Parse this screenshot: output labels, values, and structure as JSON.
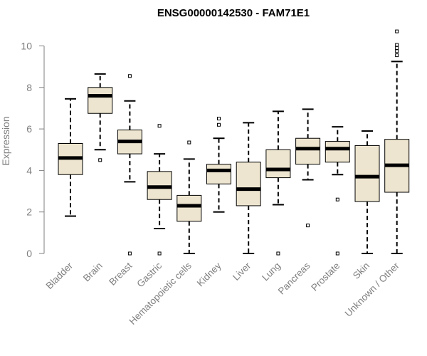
{
  "chart_data": {
    "type": "boxplot",
    "title": "ENSG00000142530 - FAM71E1",
    "xlabel": "",
    "ylabel": "Expression",
    "ylim": [
      0,
      10.5
    ],
    "yticks": [
      0,
      2,
      4,
      6,
      8,
      10
    ],
    "box_fill": "#ede5cf",
    "categories": [
      "Bladder",
      "Brain",
      "Breast",
      "Gastric",
      "Hematopoietic cells",
      "Kidney",
      "Liver",
      "Lung",
      "Pancreas",
      "Prostate",
      "Skin",
      "Unknown / Other"
    ],
    "boxes": [
      {
        "whisker_low": 1.8,
        "q1": 3.8,
        "median": 4.6,
        "q3": 5.3,
        "whisker_high": 7.45,
        "outliers": []
      },
      {
        "whisker_low": 5.0,
        "q1": 6.75,
        "median": 7.6,
        "q3": 8.0,
        "whisker_high": 8.65,
        "outliers": [
          4.5
        ]
      },
      {
        "whisker_low": 3.45,
        "q1": 4.8,
        "median": 5.4,
        "q3": 5.95,
        "whisker_high": 7.35,
        "outliers": [
          8.55,
          0.0
        ]
      },
      {
        "whisker_low": 1.2,
        "q1": 2.6,
        "median": 3.2,
        "q3": 3.95,
        "whisker_high": 4.8,
        "outliers": [
          6.15,
          0.0
        ]
      },
      {
        "whisker_low": 0.0,
        "q1": 1.55,
        "median": 2.3,
        "q3": 2.8,
        "whisker_high": 4.55,
        "outliers": [
          5.35
        ]
      },
      {
        "whisker_low": 2.0,
        "q1": 3.35,
        "median": 4.0,
        "q3": 4.3,
        "whisker_high": 5.55,
        "outliers": [
          6.5,
          6.2
        ]
      },
      {
        "whisker_low": 0.0,
        "q1": 2.3,
        "median": 3.1,
        "q3": 4.4,
        "whisker_high": 6.3,
        "outliers": []
      },
      {
        "whisker_low": 2.35,
        "q1": 3.65,
        "median": 4.05,
        "q3": 5.0,
        "whisker_high": 6.85,
        "outliers": [
          0.0
        ]
      },
      {
        "whisker_low": 3.55,
        "q1": 4.3,
        "median": 5.05,
        "q3": 5.55,
        "whisker_high": 6.95,
        "outliers": [
          1.35
        ]
      },
      {
        "whisker_low": 3.8,
        "q1": 4.4,
        "median": 5.05,
        "q3": 5.4,
        "whisker_high": 6.1,
        "outliers": [
          2.6,
          0.0
        ]
      },
      {
        "whisker_low": 0.0,
        "q1": 2.5,
        "median": 3.7,
        "q3": 5.2,
        "whisker_high": 5.9,
        "outliers": []
      },
      {
        "whisker_low": 0.0,
        "q1": 2.95,
        "median": 4.25,
        "q3": 5.5,
        "whisker_high": 9.25,
        "outliers": [
          9.55,
          9.75,
          9.9,
          10.05,
          10.7
        ]
      }
    ]
  }
}
